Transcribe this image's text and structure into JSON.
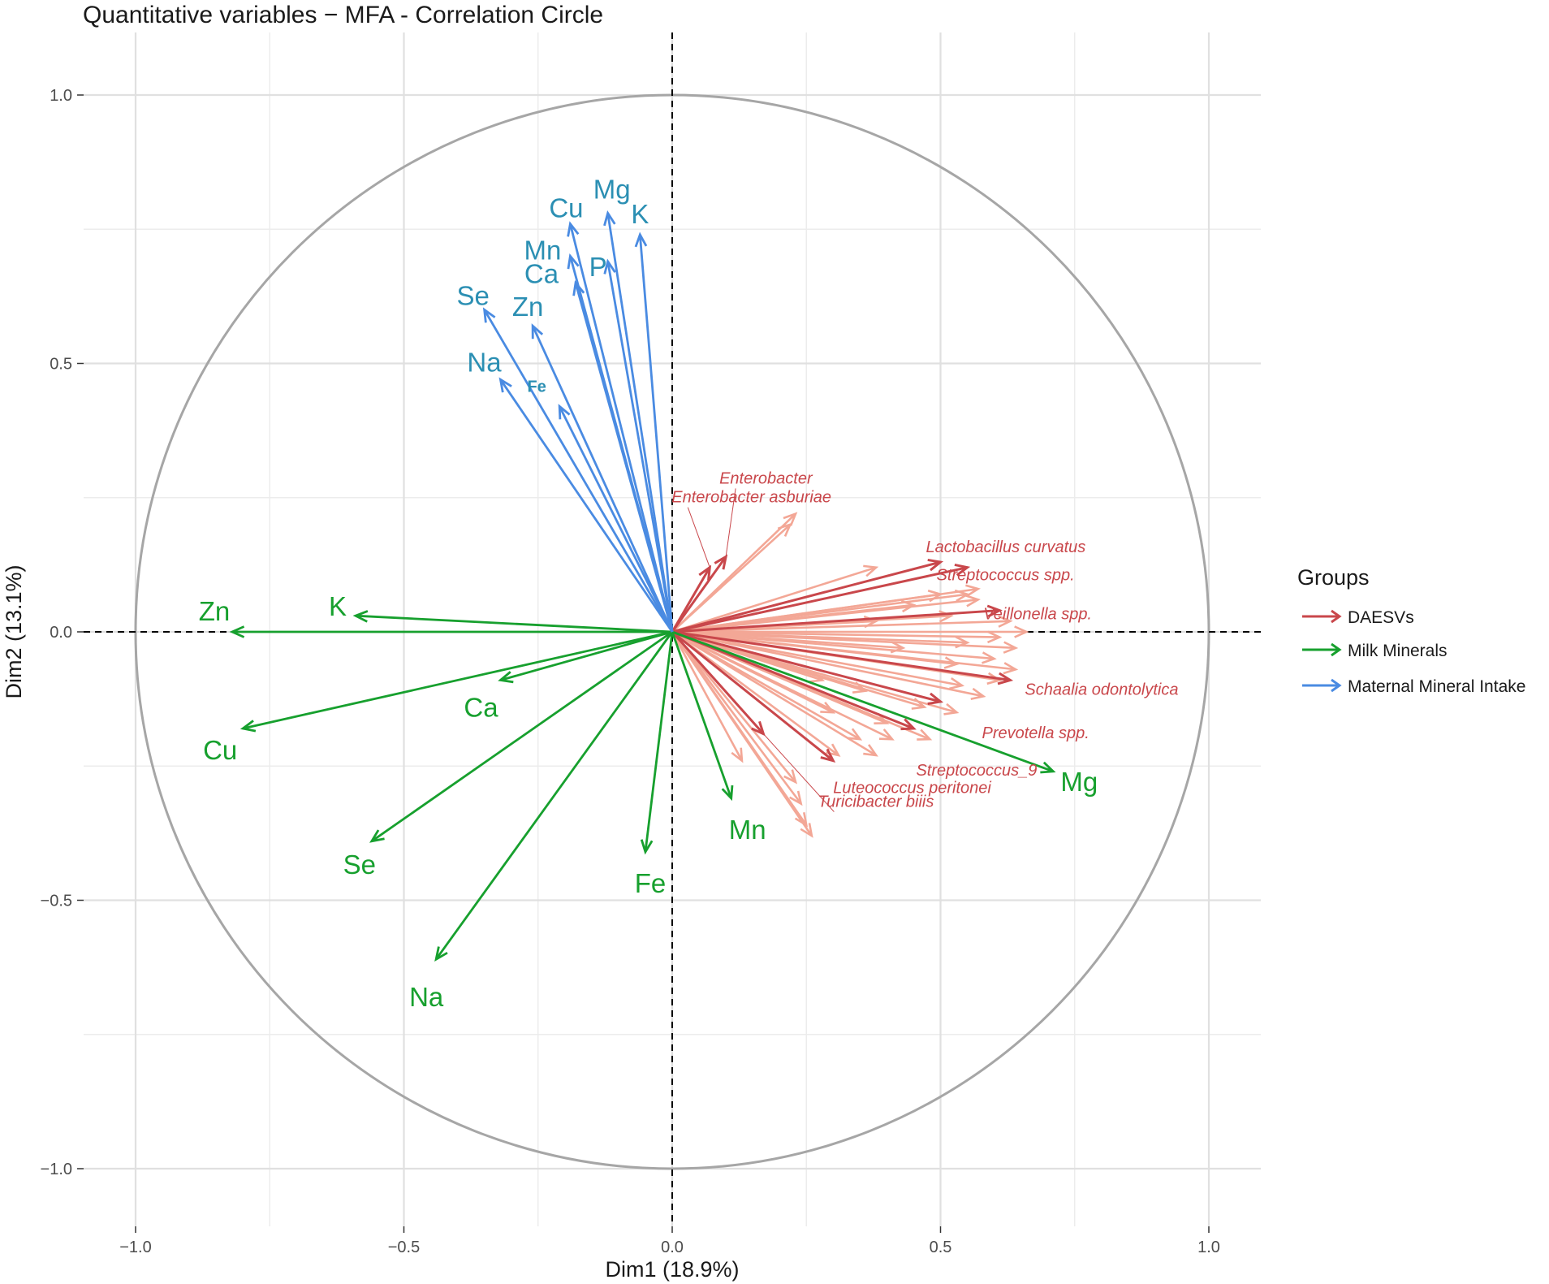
{
  "chart_data": {
    "type": "scatter",
    "subtype": "correlation-circle",
    "title": "Quantitative variables −   MFA - Correlation Circle",
    "xlabel": "Dim1 (18.9%)",
    "ylabel": "Dim2 (13.1%)",
    "xlim": [
      -1.1,
      1.1
    ],
    "ylim": [
      -1.1,
      1.1
    ],
    "x_ticks": [
      "-1.0",
      "-0.5",
      "0.0",
      "0.5",
      "1.0"
    ],
    "x_tick_values": [
      -1.0,
      -0.5,
      0.0,
      0.5,
      1.0
    ],
    "y_ticks": [
      "1.0",
      "0.5",
      "0.0",
      "-0.5",
      "-1.0"
    ],
    "y_tick_values": [
      1.0,
      0.5,
      0.0,
      -0.5,
      -1.0
    ],
    "grid": true,
    "unit_circle": true,
    "legend": {
      "title": "Groups",
      "position": "right",
      "entries": [
        {
          "label": "DAESVs",
          "color": "#c9474b"
        },
        {
          "label": "Milk Minerals",
          "color": "#17a02e"
        },
        {
          "label": "Maternal Mineral Intake",
          "color": "#4a8be2"
        }
      ]
    },
    "series": [
      {
        "name": "Maternal Mineral Intake",
        "color": "#4a8be2",
        "label_color": "#2b8fb3",
        "points": [
          {
            "label": "Cu",
            "x": -0.19,
            "y": 0.76
          },
          {
            "label": "Mg",
            "x": -0.12,
            "y": 0.78
          },
          {
            "label": "K",
            "x": -0.06,
            "y": 0.74
          },
          {
            "label": "Mn",
            "x": -0.19,
            "y": 0.7
          },
          {
            "label": "P",
            "x": -0.12,
            "y": 0.69
          },
          {
            "label": "Ca",
            "x": -0.18,
            "y": 0.65
          },
          {
            "label": "Se",
            "x": -0.35,
            "y": 0.6
          },
          {
            "label": "Zn",
            "x": -0.26,
            "y": 0.57
          },
          {
            "label": "Na",
            "x": -0.32,
            "y": 0.47
          },
          {
            "label": "Fe",
            "x": -0.21,
            "y": 0.42
          }
        ]
      },
      {
        "name": "Milk Minerals",
        "color": "#17a02e",
        "label_color": "#17a02e",
        "points": [
          {
            "label": "Zn",
            "x": -0.82,
            "y": 0.0
          },
          {
            "label": "K",
            "x": -0.59,
            "y": 0.03
          },
          {
            "label": "Ca",
            "x": -0.32,
            "y": -0.09
          },
          {
            "label": "Cu",
            "x": -0.8,
            "y": -0.18
          },
          {
            "label": "Se",
            "x": -0.56,
            "y": -0.39
          },
          {
            "label": "Na",
            "x": -0.44,
            "y": -0.61
          },
          {
            "label": "Fe",
            "x": -0.05,
            "y": -0.41
          },
          {
            "label": "Mn",
            "x": 0.11,
            "y": -0.31
          },
          {
            "label": "Mg",
            "x": 0.71,
            "y": -0.26
          }
        ]
      },
      {
        "name": "DAESVs",
        "color": "#c9474b",
        "label_color": "#c9474b",
        "points": [
          {
            "label": "Enterobacter asburiae",
            "x": 0.07,
            "y": 0.12
          },
          {
            "label": "Enterobacter",
            "x": 0.1,
            "y": 0.14
          },
          {
            "label": "Lactobacillus curvatus",
            "x": 0.5,
            "y": 0.13
          },
          {
            "label": "Streptococcus spp.",
            "x": 0.55,
            "y": 0.12
          },
          {
            "label": "Veillonella spp.",
            "x": 0.61,
            "y": 0.04
          },
          {
            "label": "Schaalia odontolytica",
            "x": 0.63,
            "y": -0.09
          },
          {
            "label": "Prevotella spp.",
            "x": 0.5,
            "y": -0.13
          },
          {
            "label": "Streptococcus_9",
            "x": 0.45,
            "y": -0.18
          },
          {
            "label": "Luteococcus peritonei",
            "x": 0.3,
            "y": -0.24
          },
          {
            "label": "Turicibacter biiis",
            "x": 0.17,
            "y": -0.19
          }
        ],
        "unlabeled_points": [
          {
            "x": 0.22,
            "y": 0.2
          },
          {
            "x": 0.23,
            "y": 0.22
          },
          {
            "x": 0.38,
            "y": 0.12
          },
          {
            "x": 0.57,
            "y": 0.08
          },
          {
            "x": 0.55,
            "y": 0.07
          },
          {
            "x": 0.57,
            "y": 0.06
          },
          {
            "x": 0.5,
            "y": 0.07
          },
          {
            "x": 0.45,
            "y": 0.05
          },
          {
            "x": 0.52,
            "y": 0.03
          },
          {
            "x": 0.38,
            "y": 0.02
          },
          {
            "x": 0.63,
            "y": 0.02
          },
          {
            "x": 0.66,
            "y": 0.0
          },
          {
            "x": 0.61,
            "y": -0.01
          },
          {
            "x": 0.55,
            "y": -0.02
          },
          {
            "x": 0.64,
            "y": -0.03
          },
          {
            "x": 0.43,
            "y": -0.03
          },
          {
            "x": 0.6,
            "y": -0.05
          },
          {
            "x": 0.53,
            "y": -0.06
          },
          {
            "x": 0.64,
            "y": -0.07
          },
          {
            "x": 0.61,
            "y": -0.09
          },
          {
            "x": 0.54,
            "y": -0.1
          },
          {
            "x": 0.28,
            "y": -0.09
          },
          {
            "x": 0.36,
            "y": -0.11
          },
          {
            "x": 0.58,
            "y": -0.12
          },
          {
            "x": 0.47,
            "y": -0.14
          },
          {
            "x": 0.53,
            "y": -0.15
          },
          {
            "x": 0.3,
            "y": -0.15
          },
          {
            "x": 0.4,
            "y": -0.17
          },
          {
            "x": 0.35,
            "y": -0.2
          },
          {
            "x": 0.41,
            "y": -0.2
          },
          {
            "x": 0.48,
            "y": -0.2
          },
          {
            "x": 0.31,
            "y": -0.23
          },
          {
            "x": 0.38,
            "y": -0.23
          },
          {
            "x": 0.13,
            "y": -0.24
          },
          {
            "x": 0.23,
            "y": -0.28
          },
          {
            "x": 0.24,
            "y": -0.32
          },
          {
            "x": 0.26,
            "y": -0.38
          },
          {
            "x": 0.25,
            "y": -0.36
          }
        ]
      }
    ]
  }
}
